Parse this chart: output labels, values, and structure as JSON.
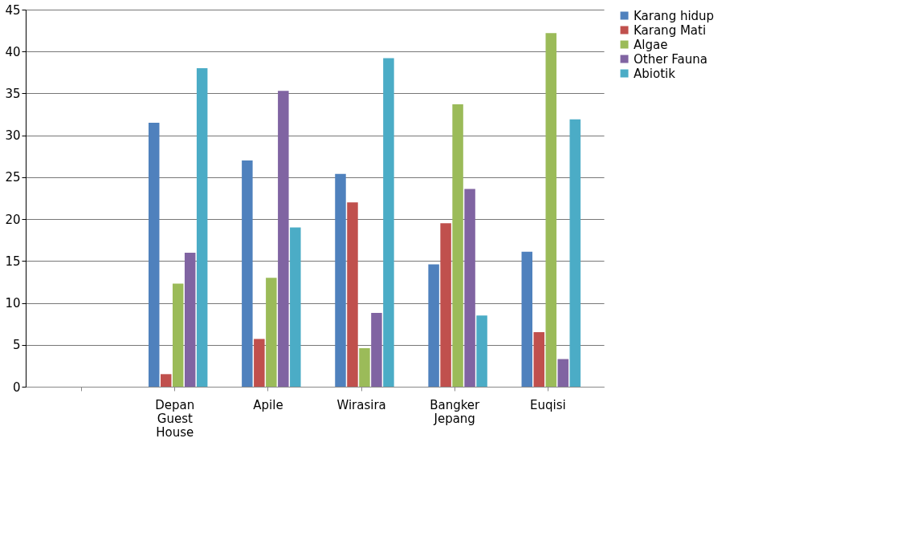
{
  "chart_data": {
    "type": "bar",
    "categories": [
      null,
      "Depan Guest House",
      "Apile",
      "Wirasira",
      "Bangker Jepang",
      "Euqisi"
    ],
    "series": [
      {
        "name": "Karang hidup",
        "color": "#4f81bd",
        "values": [
          null,
          31.5,
          27,
          25.4,
          14.6,
          16.1
        ]
      },
      {
        "name": "Karang Mati",
        "color": "#c0504d",
        "values": [
          null,
          1.5,
          5.7,
          22,
          19.5,
          6.5
        ]
      },
      {
        "name": "Algae",
        "color": "#9bbb59",
        "values": [
          null,
          12.3,
          13,
          4.6,
          33.7,
          42.2
        ]
      },
      {
        "name": "Other Fauna",
        "color": "#8064a2",
        "values": [
          null,
          16,
          35.3,
          8.8,
          23.6,
          3.3
        ]
      },
      {
        "name": "Abiotik",
        "color": "#4bacc6",
        "values": [
          null,
          38,
          19,
          39.2,
          8.5,
          31.9
        ]
      }
    ],
    "ylim": [
      0,
      45
    ],
    "yticks": [
      0,
      5,
      10,
      15,
      20,
      25,
      30,
      35,
      40,
      45
    ],
    "grid": "y",
    "legend": "right"
  }
}
